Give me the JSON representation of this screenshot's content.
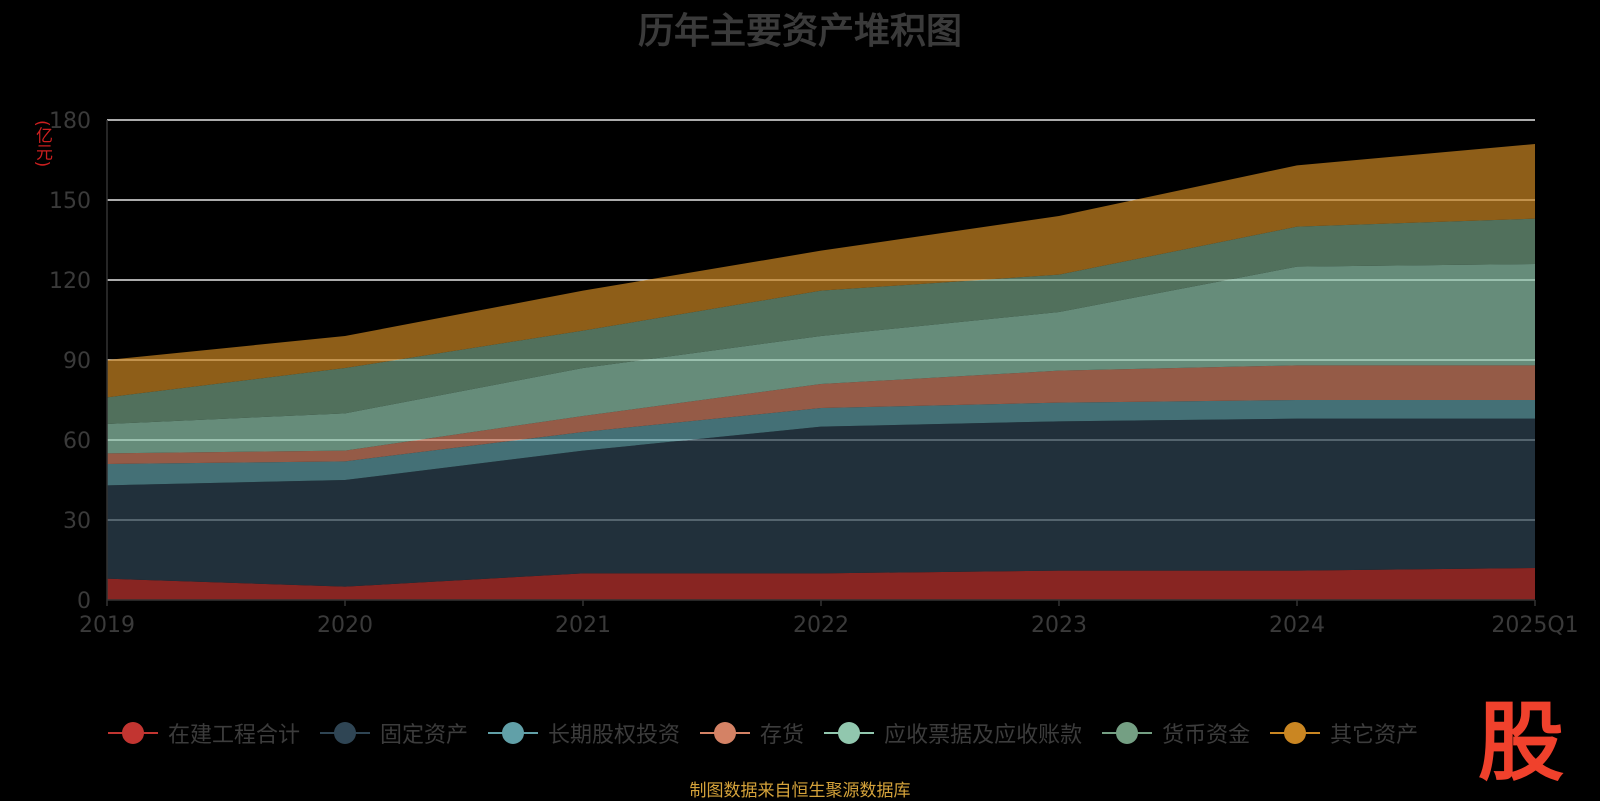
{
  "title": "历年主要资产堆积图",
  "source": "制图数据来自恒生聚源数据库",
  "logo_text": "股",
  "chart_data": {
    "type": "area",
    "stacked": true,
    "unit_label": "(亿元)",
    "categories": [
      "2019",
      "2020",
      "2021",
      "2022",
      "2023",
      "2024",
      "2025Q1"
    ],
    "ylim": [
      0,
      180
    ],
    "yticks": [
      0,
      30,
      60,
      90,
      120,
      150,
      180
    ],
    "grid": true,
    "legend_position": "bottom",
    "series": [
      {
        "name": "在建工程合计",
        "color": "#c23531",
        "values": [
          8,
          5,
          10,
          10,
          11,
          11,
          12
        ]
      },
      {
        "name": "固定资产",
        "color": "#2f4554",
        "values": [
          35,
          40,
          46,
          55,
          56,
          57,
          56
        ]
      },
      {
        "name": "长期股权投资",
        "color": "#61a0a8",
        "values": [
          8,
          7,
          7,
          7,
          7,
          7,
          7
        ]
      },
      {
        "name": "存货",
        "color": "#d48265",
        "values": [
          4,
          4,
          6,
          9,
          12,
          13,
          13
        ]
      },
      {
        "name": "应收票据及应收账款",
        "color": "#91c7ae",
        "values": [
          11,
          14,
          18,
          18,
          22,
          37,
          38
        ]
      },
      {
        "name": "货币资金",
        "color": "#749f83",
        "values": [
          10,
          17,
          14,
          17,
          14,
          15,
          17
        ]
      },
      {
        "name": "其它资产",
        "color": "#ca8622",
        "values": [
          14,
          12,
          15,
          15,
          22,
          23,
          28
        ]
      }
    ]
  }
}
